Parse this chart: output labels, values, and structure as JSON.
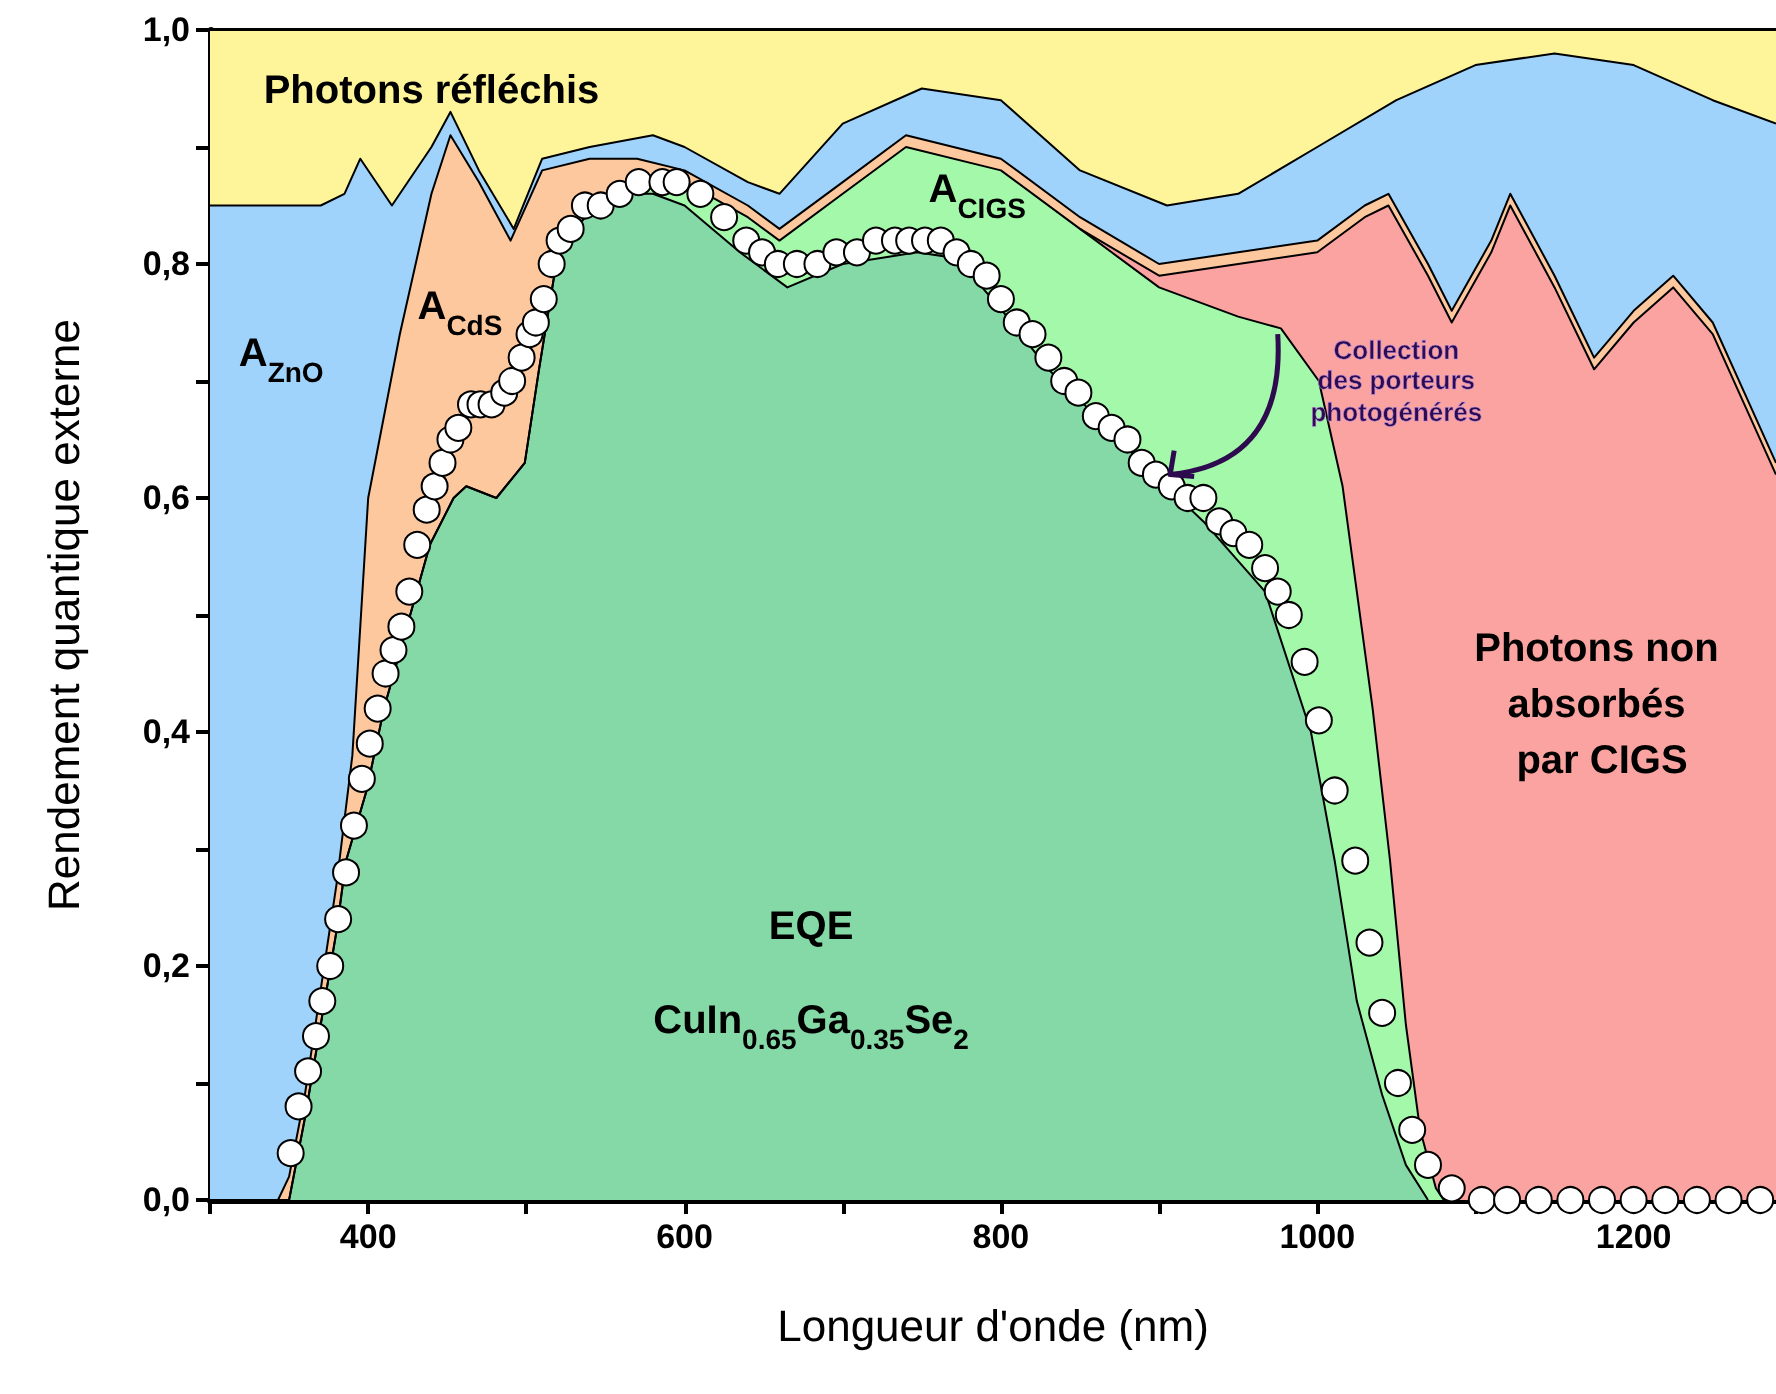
{
  "chart_data": {
    "type": "area",
    "xlabel": "Longueur d'onde (nm)",
    "ylabel": "Rendement quantique externe",
    "xlim": [
      300,
      1290
    ],
    "ylim": [
      0,
      1
    ],
    "xticks": [
      {
        "value": 300,
        "label": null
      },
      400,
      {
        "value": 500,
        "label": null
      },
      600,
      {
        "value": 700,
        "label": null
      },
      800,
      {
        "value": 900,
        "label": null
      },
      1000,
      {
        "value": 1100,
        "label": null
      },
      1200
    ],
    "yticks": [
      {
        "value": 0,
        "label": "0,0"
      },
      {
        "value": 0.1,
        "label": null
      },
      {
        "value": 0.2,
        "label": "0,2"
      },
      {
        "value": 0.3,
        "label": null
      },
      {
        "value": 0.4,
        "label": "0,4"
      },
      {
        "value": 0.5,
        "label": null
      },
      {
        "value": 0.6,
        "label": "0,6"
      },
      {
        "value": 0.7,
        "label": null
      },
      {
        "value": 0.8,
        "label": "0,8"
      },
      {
        "value": 0.9,
        "label": null
      },
      {
        "value": 1,
        "label": "1,0"
      }
    ],
    "legend": false,
    "series": [
      {
        "name": "Photons réfléchis",
        "color": "#fef59b",
        "x": [
          300,
          1290
        ],
        "values": [
          1,
          1
        ]
      },
      {
        "name": "A$_{ZnO}$",
        "color": "#9fd3fb",
        "x": [
          300,
          350,
          370,
          385,
          395,
          415,
          440,
          452,
          470,
          492,
          510,
          540,
          580,
          600,
          640,
          660,
          700,
          750,
          800,
          850,
          905,
          950,
          1000,
          1050,
          1100,
          1150,
          1200,
          1250,
          1290
        ],
        "values": [
          0.85,
          0.85,
          0.85,
          0.86,
          0.89,
          0.85,
          0.9,
          0.93,
          0.88,
          0.83,
          0.89,
          0.9,
          0.91,
          0.9,
          0.87,
          0.86,
          0.92,
          0.95,
          0.94,
          0.88,
          0.85,
          0.86,
          0.9,
          0.94,
          0.97,
          0.98,
          0.97,
          0.94,
          0.92
        ]
      },
      {
        "name": "A$_{CdS}$",
        "color": "#fdc89d",
        "x": [
          300,
          343,
          350,
          360,
          380,
          390,
          400,
          420,
          440,
          452,
          470,
          490,
          510,
          540,
          570,
          600,
          640,
          660,
          700,
          740,
          800,
          850,
          900,
          950,
          1000,
          1030,
          1045,
          1070,
          1085,
          1110,
          1122,
          1150,
          1175,
          1200,
          1225,
          1250,
          1270,
          1290
        ],
        "values": [
          0,
          0,
          0.02,
          0.09,
          0.27,
          0.38,
          0.6,
          0.74,
          0.86,
          0.91,
          0.87,
          0.82,
          0.88,
          0.89,
          0.89,
          0.88,
          0.85,
          0.83,
          0.87,
          0.91,
          0.89,
          0.84,
          0.8,
          0.81,
          0.82,
          0.85,
          0.86,
          0.8,
          0.76,
          0.82,
          0.86,
          0.79,
          0.72,
          0.76,
          0.79,
          0.75,
          0.69,
          0.63
        ]
      },
      {
        "name": "Photons non absorbés par CIGS",
        "color": "#fba3a0",
        "x": [
          850,
          900,
          950,
          1000,
          1030,
          1045,
          1070,
          1085,
          1110,
          1122,
          1150,
          1175,
          1200,
          1225,
          1250,
          1270,
          1290
        ],
        "values": [
          0.83,
          0.79,
          0.8,
          0.81,
          0.84,
          0.85,
          0.79,
          0.75,
          0.81,
          0.85,
          0.78,
          0.71,
          0.75,
          0.78,
          0.74,
          0.68,
          0.62
        ]
      },
      {
        "name": "A$_{CIGS}$",
        "color": "#a3f8a9",
        "x": [
          300,
          350,
          360,
          380,
          386,
          399,
          410,
          439,
          454,
          462,
          481,
          499,
          508,
          520,
          537,
          566,
          586,
          600,
          640,
          660,
          700,
          740,
          800,
          850,
          870,
          900,
          950,
          977,
          1001,
          1016,
          1025,
          1035,
          1046,
          1056,
          1065,
          1075,
          1080
        ],
        "values": [
          0,
          0,
          0.07,
          0.23,
          0.29,
          0.35,
          0.42,
          0.56,
          0.6,
          0.61,
          0.6,
          0.63,
          0.71,
          0.81,
          0.84,
          0.86,
          0.87,
          0.87,
          0.84,
          0.82,
          0.86,
          0.9,
          0.88,
          0.83,
          0.81,
          0.78,
          0.755,
          0.745,
          0.7,
          0.61,
          0.52,
          0.42,
          0.29,
          0.15,
          0.06,
          0.01,
          0
        ]
      },
      {
        "name": "EQE",
        "color": "#84d9a6",
        "x": [
          300,
          350,
          360,
          380,
          386,
          399,
          410,
          439,
          454,
          462,
          481,
          499,
          508,
          520,
          537,
          566,
          580,
          600,
          635,
          665,
          700,
          747,
          772,
          801,
          830,
          860,
          889,
          928,
          967,
          996,
          1011,
          1025,
          1041,
          1056,
          1070
        ],
        "values": [
          0,
          0,
          0.07,
          0.23,
          0.29,
          0.35,
          0.42,
          0.56,
          0.6,
          0.61,
          0.6,
          0.63,
          0.71,
          0.81,
          0.84,
          0.86,
          0.86,
          0.85,
          0.81,
          0.78,
          0.8,
          0.81,
          0.805,
          0.76,
          0.71,
          0.67,
          0.63,
          0.58,
          0.52,
          0.4,
          0.29,
          0.17,
          0.09,
          0.03,
          0
        ]
      },
      {
        "type": "scatter",
        "marker": "circle",
        "color": "#ffffff",
        "x": [
          351,
          356,
          362,
          367,
          371,
          376,
          381,
          386,
          391,
          396,
          401,
          406,
          411,
          416,
          421,
          426,
          431,
          437,
          442,
          447,
          452,
          457,
          465,
          471,
          478,
          486,
          491,
          497,
          502,
          506,
          511,
          516,
          521,
          528,
          537,
          547,
          559,
          571,
          586,
          595,
          610,
          625,
          639,
          649,
          659,
          671,
          684,
          696,
          709,
          721,
          733,
          742,
          752,
          762,
          772,
          781,
          791,
          800,
          810,
          820,
          830,
          840,
          849,
          860,
          870,
          880,
          889,
          898,
          908,
          918,
          928,
          938,
          947,
          957,
          967,
          975,
          982,
          992,
          1001,
          1011,
          1024,
          1033,
          1041,
          1051,
          1060,
          1070,
          1085,
          1104,
          1120,
          1140,
          1160,
          1180,
          1200,
          1220,
          1240,
          1260,
          1280
        ],
        "values": [
          0.04,
          0.08,
          0.11,
          0.14,
          0.17,
          0.2,
          0.24,
          0.28,
          0.32,
          0.36,
          0.39,
          0.42,
          0.45,
          0.47,
          0.49,
          0.52,
          0.56,
          0.59,
          0.61,
          0.63,
          0.65,
          0.66,
          0.68,
          0.68,
          0.68,
          0.69,
          0.7,
          0.72,
          0.74,
          0.75,
          0.77,
          0.8,
          0.82,
          0.83,
          0.85,
          0.85,
          0.86,
          0.87,
          0.87,
          0.87,
          0.86,
          0.84,
          0.82,
          0.81,
          0.8,
          0.8,
          0.8,
          0.81,
          0.81,
          0.82,
          0.82,
          0.82,
          0.82,
          0.82,
          0.81,
          0.8,
          0.79,
          0.77,
          0.75,
          0.74,
          0.72,
          0.7,
          0.69,
          0.67,
          0.66,
          0.65,
          0.63,
          0.62,
          0.61,
          0.6,
          0.6,
          0.58,
          0.57,
          0.56,
          0.54,
          0.52,
          0.5,
          0.46,
          0.41,
          0.35,
          0.29,
          0.22,
          0.16,
          0.1,
          0.06,
          0.03,
          0.01,
          0,
          0,
          0,
          0,
          0,
          0,
          0,
          0,
          0,
          0
        ]
      }
    ],
    "annotations": [
      "CuIn$_{0.65}$Ga$_{0.35}$Se$_{2}$",
      {
        "text": "Collection des porteurs photogénérés",
        "x": 907,
        "y": 0.62
      }
    ]
  }
}
